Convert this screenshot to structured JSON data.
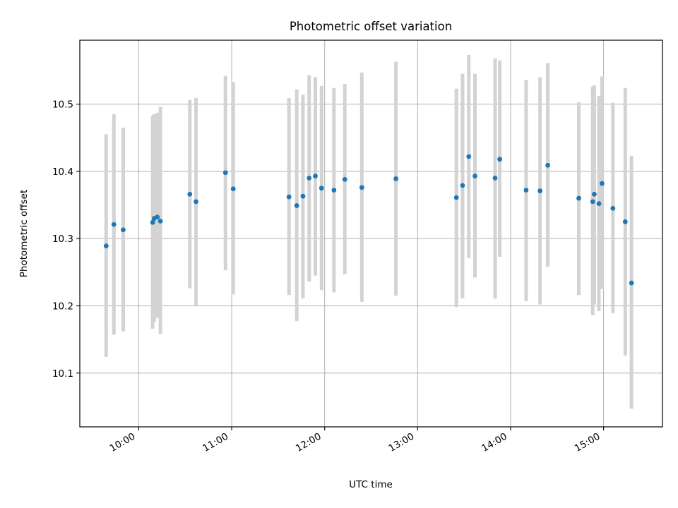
{
  "chart_data": {
    "type": "scatter",
    "title": "Photometric offset variation",
    "xlabel": "UTC time",
    "ylabel": "Photometric offset",
    "xlim": [
      "09:22",
      "15:38"
    ],
    "ylim": [
      10.02,
      10.595
    ],
    "x_ticks": [
      "10:00",
      "11:00",
      "12:00",
      "13:00",
      "14:00",
      "15:00"
    ],
    "y_ticks": [
      10.1,
      10.2,
      10.3,
      10.4,
      10.5
    ],
    "grid": true,
    "marker_color": "#1f77b4",
    "errorbar_color": "#d3d3d3",
    "points": [
      {
        "x": "09:39",
        "y": 10.289,
        "ylow": 10.124,
        "yhigh": 10.455
      },
      {
        "x": "09:44",
        "y": 10.321,
        "ylow": 10.157,
        "yhigh": 10.485
      },
      {
        "x": "09:50",
        "y": 10.313,
        "ylow": 10.162,
        "yhigh": 10.465
      },
      {
        "x": "10:09",
        "y": 10.324,
        "ylow": 10.166,
        "yhigh": 10.483
      },
      {
        "x": "10:10",
        "y": 10.33,
        "ylow": 10.176,
        "yhigh": 10.485
      },
      {
        "x": "10:12",
        "y": 10.332,
        "ylow": 10.182,
        "yhigh": 10.487
      },
      {
        "x": "10:14",
        "y": 10.326,
        "ylow": 10.158,
        "yhigh": 10.496
      },
      {
        "x": "10:33",
        "y": 10.366,
        "ylow": 10.226,
        "yhigh": 10.506
      },
      {
        "x": "10:37",
        "y": 10.355,
        "ylow": 10.2,
        "yhigh": 10.509
      },
      {
        "x": "10:56",
        "y": 10.398,
        "ylow": 10.253,
        "yhigh": 10.542
      },
      {
        "x": "11:01",
        "y": 10.374,
        "ylow": 10.217,
        "yhigh": 10.533
      },
      {
        "x": "11:37",
        "y": 10.362,
        "ylow": 10.216,
        "yhigh": 10.509
      },
      {
        "x": "11:42",
        "y": 10.349,
        "ylow": 10.177,
        "yhigh": 10.522
      },
      {
        "x": "11:46",
        "y": 10.363,
        "ylow": 10.211,
        "yhigh": 10.514
      },
      {
        "x": "11:50",
        "y": 10.39,
        "ylow": 10.236,
        "yhigh": 10.543
      },
      {
        "x": "11:54",
        "y": 10.393,
        "ylow": 10.245,
        "yhigh": 10.54
      },
      {
        "x": "11:58",
        "y": 10.375,
        "ylow": 10.223,
        "yhigh": 10.527
      },
      {
        "x": "12:06",
        "y": 10.372,
        "ylow": 10.22,
        "yhigh": 10.524
      },
      {
        "x": "12:13",
        "y": 10.388,
        "ylow": 10.247,
        "yhigh": 10.53
      },
      {
        "x": "12:24",
        "y": 10.376,
        "ylow": 10.206,
        "yhigh": 10.547
      },
      {
        "x": "12:46",
        "y": 10.389,
        "ylow": 10.215,
        "yhigh": 10.563
      },
      {
        "x": "13:25",
        "y": 10.361,
        "ylow": 10.198,
        "yhigh": 10.523
      },
      {
        "x": "13:29",
        "y": 10.379,
        "ylow": 10.211,
        "yhigh": 10.545
      },
      {
        "x": "13:33",
        "y": 10.422,
        "ylow": 10.271,
        "yhigh": 10.573
      },
      {
        "x": "13:37",
        "y": 10.393,
        "ylow": 10.242,
        "yhigh": 10.545
      },
      {
        "x": "13:50",
        "y": 10.39,
        "ylow": 10.211,
        "yhigh": 10.568
      },
      {
        "x": "13:53",
        "y": 10.418,
        "ylow": 10.273,
        "yhigh": 10.565
      },
      {
        "x": "14:10",
        "y": 10.372,
        "ylow": 10.207,
        "yhigh": 10.536
      },
      {
        "x": "14:19",
        "y": 10.371,
        "ylow": 10.202,
        "yhigh": 10.54
      },
      {
        "x": "14:24",
        "y": 10.409,
        "ylow": 10.258,
        "yhigh": 10.561
      },
      {
        "x": "14:44",
        "y": 10.36,
        "ylow": 10.216,
        "yhigh": 10.503
      },
      {
        "x": "14:53",
        "y": 10.355,
        "ylow": 10.186,
        "yhigh": 10.526
      },
      {
        "x": "14:54",
        "y": 10.366,
        "ylow": 10.202,
        "yhigh": 10.528
      },
      {
        "x": "14:57",
        "y": 10.352,
        "ylow": 10.192,
        "yhigh": 10.512
      },
      {
        "x": "14:59",
        "y": 10.382,
        "ylow": 10.225,
        "yhigh": 10.541
      },
      {
        "x": "15:06",
        "y": 10.345,
        "ylow": 10.189,
        "yhigh": 10.502
      },
      {
        "x": "15:14",
        "y": 10.325,
        "ylow": 10.126,
        "yhigh": 10.524
      },
      {
        "x": "15:18",
        "y": 10.234,
        "ylow": 10.047,
        "yhigh": 10.423
      }
    ]
  }
}
